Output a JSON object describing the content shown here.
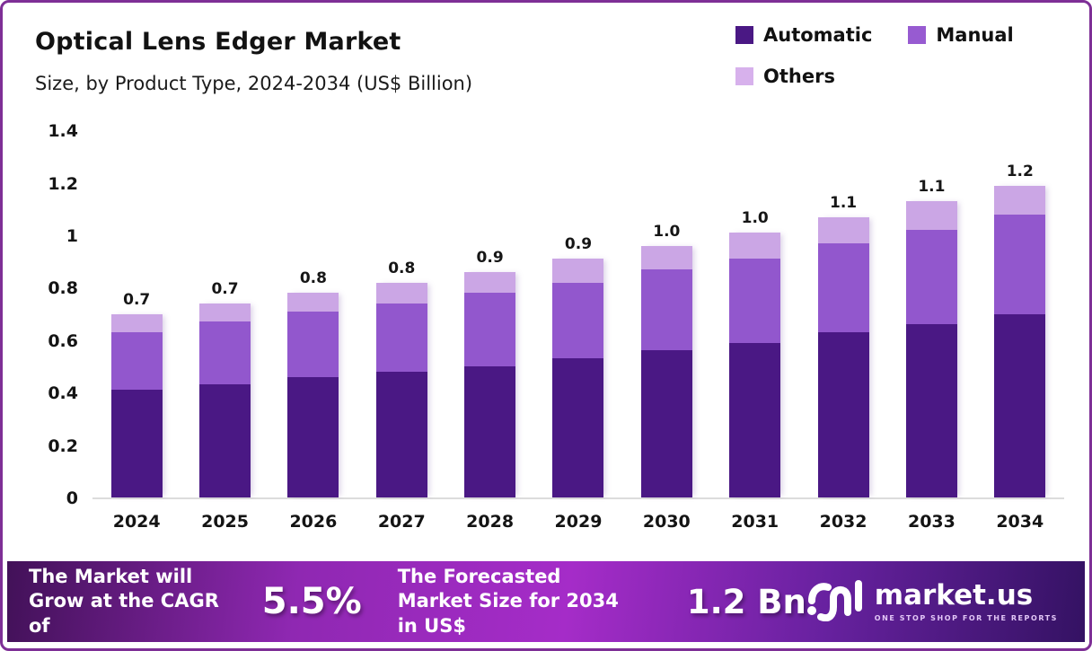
{
  "header": {
    "title": "Optical Lens Edger Market",
    "subtitle": "Size, by Product Type, 2024-2034 (US$ Billion)"
  },
  "legend": {
    "items": [
      {
        "label": "Automatic",
        "color": "#4a1884"
      },
      {
        "label": "Manual",
        "color": "#975bd1"
      },
      {
        "label": "Others",
        "color": "#d7b1ec"
      }
    ]
  },
  "chart_data": {
    "type": "bar",
    "stacked": true,
    "title": "Optical Lens Edger Market Size, by Product Type, 2024-2034 (US$ Billion)",
    "xlabel": "",
    "ylabel": "US$ Billion",
    "ylim": [
      0,
      1.4
    ],
    "yticks": [
      "1.4",
      "1.2",
      "1",
      "0.8",
      "0.6",
      "0.4",
      "0.2",
      "0"
    ],
    "grid": false,
    "legend_position": "top-right",
    "categories": [
      "2024",
      "2025",
      "2026",
      "2027",
      "2028",
      "2029",
      "2030",
      "2031",
      "2032",
      "2033",
      "2034"
    ],
    "series": [
      {
        "name": "Automatic",
        "color": "#4a1884",
        "values": [
          0.41,
          0.43,
          0.46,
          0.48,
          0.5,
          0.53,
          0.56,
          0.59,
          0.63,
          0.66,
          0.7
        ]
      },
      {
        "name": "Manual",
        "color": "#9257cd",
        "values": [
          0.22,
          0.24,
          0.25,
          0.26,
          0.28,
          0.29,
          0.31,
          0.32,
          0.34,
          0.36,
          0.38
        ]
      },
      {
        "name": "Others",
        "color": "#cba6e5",
        "values": [
          0.07,
          0.07,
          0.07,
          0.08,
          0.08,
          0.09,
          0.09,
          0.1,
          0.1,
          0.11,
          0.11
        ]
      }
    ],
    "totals": [
      "0.7",
      "0.7",
      "0.8",
      "0.8",
      "0.9",
      "0.9",
      "1.0",
      "1.0",
      "1.1",
      "1.1",
      "1.2"
    ]
  },
  "footer": {
    "cagr_text": "The Market will Grow at the CAGR of",
    "cagr_value": "5.5%",
    "forecast_text": "The Forecasted Market Size for 2034 in US$",
    "forecast_value": "1.2 Bn",
    "brand": {
      "name": "market.us",
      "tagline": "ONE STOP SHOP FOR THE REPORTS"
    }
  },
  "colors": {
    "card_border": "#7e2f96",
    "axis_line": "#dcdcdc",
    "banner_center": "#a52cc8",
    "banner_edge": "#341263"
  }
}
